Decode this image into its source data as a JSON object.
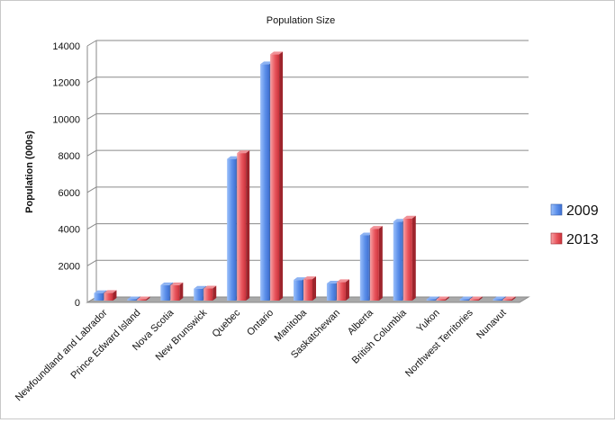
{
  "chart_data": {
    "type": "bar",
    "title": "Population Size",
    "xlabel": "",
    "ylabel": "Population (000s)",
    "ylim": [
      0,
      14000
    ],
    "yticks": [
      0,
      2000,
      4000,
      6000,
      8000,
      10000,
      12000,
      14000
    ],
    "grid": true,
    "legend_position": "right",
    "categories": [
      "Newfoundland and Labrador",
      "Prince Edward Island",
      "Nova Scotia",
      "New Brunswick",
      "Quebec",
      "Ontario",
      "Manitoba",
      "Saskatchewan",
      "Alberta",
      "British Columbia",
      "Yukon",
      "Northwest Territories",
      "Nunavut"
    ],
    "series": [
      {
        "name": "2009",
        "color": "#4f86e8",
        "values": [
          510,
          140,
          940,
          750,
          7830,
          13000,
          1220,
          1030,
          3660,
          4410,
          35,
          43,
          33
        ]
      },
      {
        "name": "2013",
        "color": "#e8454e",
        "values": [
          520,
          145,
          940,
          760,
          8150,
          13540,
          1270,
          1110,
          4020,
          4580,
          36,
          44,
          36
        ]
      }
    ]
  }
}
